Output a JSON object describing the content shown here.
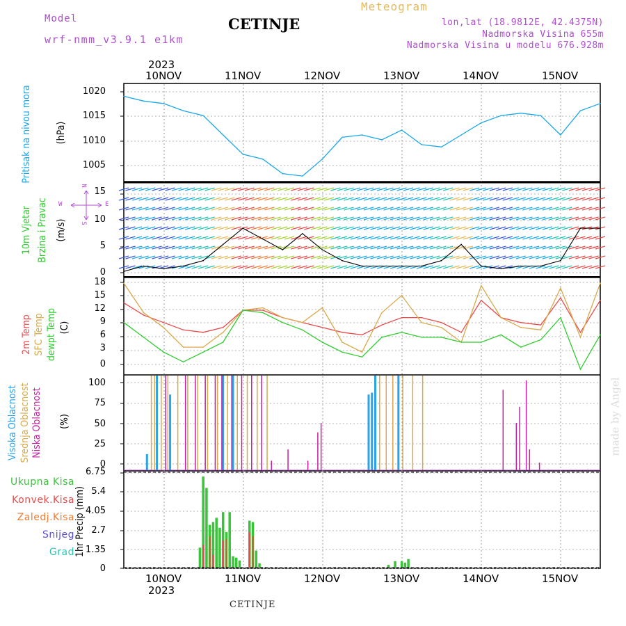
{
  "header": {
    "model_label": "Model",
    "model_name": "wrf-nmm_v3.9.1 e1km",
    "title": "CETINJE",
    "meteogram": "Meteogram",
    "lonlat": "lon,lat (18.9812E, 42.4375N)",
    "altitude": "Nadmorska Visina 655m",
    "model_altitude": "Nadmorska Visina u modelu 676.928m"
  },
  "axis": {
    "year": "2023",
    "dates": [
      "10NOV",
      "11NOV",
      "12NOV",
      "13NOV",
      "14NOV",
      "15NOV"
    ]
  },
  "panels": {
    "pressure": {
      "label": "Pritisak na nivou mora",
      "unit": "(hPa)",
      "ticks": [
        "1020",
        "1015",
        "1010",
        "1005"
      ]
    },
    "wind": {
      "label1": "10m Vjetar",
      "label2": "Brzina i Pravac",
      "unit": "(m/s)",
      "ticks": [
        "15",
        "10",
        "5",
        "0"
      ],
      "compass_n": "N",
      "compass_s": "S",
      "compass_w": "W",
      "compass_e": "E"
    },
    "temp": {
      "label1": "2m Temp",
      "label2": "SFC Temp",
      "label3": "dewpt Temp",
      "unit": "(C)",
      "ticks": [
        "18",
        "15",
        "12",
        "9",
        "6",
        "3",
        "0"
      ]
    },
    "cloud": {
      "label1": "Visoka Oblacnost",
      "label2": "Srednja Oblacnost",
      "label3": "Niska Oblacnost",
      "unit": "(%)",
      "ticks": [
        "100",
        "75",
        "50",
        "25",
        "0"
      ]
    },
    "precip": {
      "legend": [
        "Ukupna Kisa",
        "Konvek.Kisa",
        "Zaledj.Kisa",
        "Snijeg",
        "Grad"
      ],
      "unit": "1hr Precip (mm)",
      "ticks": [
        "6.75",
        "5.4",
        "4.05",
        "2.7",
        "1.35",
        "0"
      ]
    }
  },
  "footer": {
    "station": "CETINJE",
    "watermark": "made by Angel"
  },
  "colors": {
    "pressure": "#1aa7e8",
    "t2m": "#e84a4a",
    "sfc": "#d9a94a",
    "dewpt": "#2fcc2f",
    "high": "#2aa3e8",
    "mid": "#d9a94a",
    "low": "#c51fa0",
    "precip_total": "#39c439",
    "precip_conv": "#e84a4a",
    "freezing": "#f07b35",
    "snow": "#5a4fd6",
    "hail": "#2fc4b6",
    "wind_legend": "#2fcc2f",
    "wind_unit_compass": "#b04dd1"
  },
  "chart_data": [
    {
      "type": "line",
      "title": "Pritisak na nivou mora",
      "ylabel": "(hPa)",
      "ylim": [
        1002.5,
        1022.5
      ],
      "x": [
        0,
        6,
        12,
        18,
        24,
        30,
        36,
        42,
        48,
        54,
        60,
        66,
        72,
        78,
        84,
        90,
        96,
        102,
        108,
        114,
        120,
        126,
        132,
        138,
        144
      ],
      "series": [
        {
          "values": [
            1020,
            1019,
            1018.5,
            1017,
            1016,
            1012,
            1008,
            1007,
            1004,
            1003.5,
            1007,
            1011.5,
            1012,
            1011,
            1013,
            1010,
            1009.5,
            1012,
            1014.5,
            1016,
            1016.5,
            1016,
            1012,
            1017,
            1018.5
          ]
        }
      ]
    },
    {
      "type": "line",
      "title": "10m Vjetar Brzina i Pravac",
      "ylabel": "(m/s)",
      "ylim": [
        0,
        17.5
      ],
      "x": [
        0,
        6,
        12,
        18,
        24,
        30,
        36,
        42,
        48,
        54,
        60,
        66,
        72,
        78,
        84,
        90,
        96,
        102,
        108,
        114,
        120,
        126,
        132,
        138,
        144
      ],
      "series": [
        {
          "values": [
            1,
            2,
            1.5,
            2,
            3,
            6,
            9,
            7,
            5,
            8,
            5,
            3,
            2,
            2,
            2,
            2,
            3,
            6,
            2,
            1.5,
            2,
            2,
            3,
            9,
            9
          ]
        }
      ]
    },
    {
      "type": "line",
      "ylabel": "(C)",
      "ylim": [
        -1.5,
        18
      ],
      "x": [
        0,
        6,
        12,
        18,
        24,
        30,
        36,
        42,
        48,
        54,
        60,
        66,
        72,
        78,
        84,
        90,
        96,
        102,
        108,
        114,
        120,
        126,
        132,
        138,
        144
      ],
      "series": [
        {
          "name": "2m Temp",
          "values": [
            13,
            10.5,
            9,
            7.5,
            7,
            8,
            11.5,
            11.5,
            10,
            9,
            8,
            7,
            6.5,
            8.5,
            10,
            10,
            9,
            7,
            13.5,
            10,
            9,
            8.5,
            14,
            7,
            13.5
          ]
        },
        {
          "name": "SFC Temp",
          "values": [
            17,
            11,
            8,
            4,
            4,
            7,
            11.5,
            12,
            10,
            9,
            12,
            5,
            3,
            11,
            14.5,
            9,
            8,
            5,
            16.5,
            10,
            8,
            7.5,
            16,
            6,
            17
          ]
        },
        {
          "name": "dewpt Temp",
          "values": [
            9,
            6,
            3,
            1,
            3,
            5,
            11.5,
            11,
            9,
            7.5,
            5,
            3,
            2,
            6,
            7,
            6,
            6,
            5,
            5,
            6.5,
            4,
            5.5,
            10,
            -0.5,
            6.5
          ]
        }
      ]
    },
    {
      "type": "bar",
      "ylabel": "(%)",
      "ylim": [
        0,
        100
      ],
      "series": [
        {
          "name": "Visoka Oblacnost",
          "hours": [
            7,
            10,
            14,
            30,
            33,
            74,
            75,
            76,
            83
          ],
          "values": [
            17,
            100,
            80,
            100,
            100,
            80,
            82,
            100,
            100
          ]
        },
        {
          "name": "Srednja Oblacnost",
          "hours": [
            8,
            9,
            11,
            13,
            16,
            19,
            22,
            25,
            28,
            31,
            34,
            37,
            40,
            43,
            77,
            79,
            81,
            84,
            87,
            90
          ],
          "values": [
            100,
            100,
            100,
            100,
            100,
            100,
            100,
            100,
            100,
            100,
            100,
            100,
            100,
            100,
            100,
            100,
            100,
            100,
            100,
            100
          ]
        },
        {
          "name": "Niska Oblacnost",
          "hours": [
            12,
            18,
            21,
            24,
            27,
            29,
            32,
            35,
            38,
            41,
            44,
            49,
            55,
            58,
            59,
            114,
            118,
            119,
            121,
            122,
            125
          ],
          "values": [
            100,
            100,
            100,
            100,
            100,
            100,
            100,
            100,
            100,
            100,
            10,
            22,
            10,
            40,
            50,
            85,
            50,
            67,
            95,
            22,
            8
          ]
        }
      ]
    },
    {
      "type": "bar",
      "ylabel": "1hr Precip (mm)",
      "ylim": [
        0,
        6.75
      ],
      "series": [
        {
          "name": "Ukupna Kisa",
          "hours": [
            23,
            24,
            25,
            26,
            27,
            28,
            29,
            30,
            31,
            32,
            33,
            34,
            35,
            38,
            39,
            40,
            41,
            80,
            82,
            84,
            85,
            86
          ],
          "values": [
            1.4,
            6.4,
            5.6,
            3.0,
            3.2,
            3.5,
            2.8,
            3.9,
            2.5,
            3.9,
            0.8,
            0.7,
            0.5,
            3.3,
            3.2,
            1.2,
            0.3,
            0.2,
            0.45,
            0.45,
            0.35,
            0.6
          ]
        },
        {
          "name": "Konvek.Kisa",
          "hours": [
            24,
            26,
            27,
            30,
            31,
            38,
            39
          ],
          "values": [
            1.6,
            2.2,
            0.9,
            1.9,
            2.0,
            2.5,
            2.2
          ]
        },
        {
          "name": "Zaledj.Kisa",
          "hours": [],
          "values": []
        },
        {
          "name": "Snijeg",
          "hours": [],
          "values": []
        },
        {
          "name": "Grad",
          "hours": [],
          "values": []
        }
      ]
    }
  ]
}
